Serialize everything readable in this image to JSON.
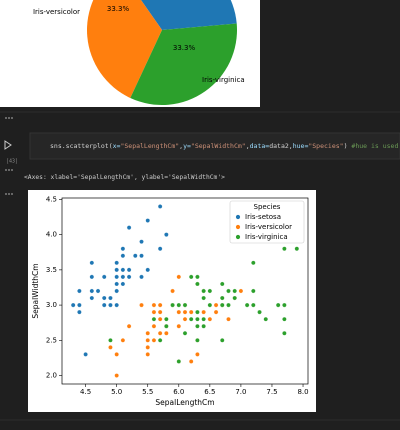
{
  "chart_data": [
    {
      "type": "pie",
      "categories": [
        null,
        "Iris-versicolor",
        "Iris-virginica"
      ],
      "values": [
        33.3,
        33.3,
        33.3
      ],
      "value_labels": [
        null,
        "33.3%",
        "33.3%"
      ],
      "colors": [
        "#1f77b4",
        "#ff7f0e",
        "#2ca02c"
      ]
    },
    {
      "type": "scatter",
      "xlabel": "SepalLengthCm",
      "ylabel": "SepalWidthCm",
      "xlim": [
        4.12,
        8.08
      ],
      "ylim": [
        1.88,
        4.52
      ],
      "xticks": [
        4.5,
        {
          "value": 5,
          "label": "5.0"
        },
        5.5,
        {
          "value": 6,
          "label": "6.0"
        },
        6.5,
        {
          "value": 7,
          "label": "7.0"
        },
        7.5,
        {
          "value": 8,
          "label": "8.0"
        }
      ],
      "yticks": [
        {
          "value": 2,
          "label": "2.0"
        },
        2.5,
        {
          "value": 3,
          "label": "3.0"
        },
        3.5,
        {
          "value": 4,
          "label": "4.0"
        },
        4.5
      ],
      "legend": {
        "title": "Species",
        "loc": "upper right"
      },
      "series": [
        {
          "name": "Iris-setosa",
          "color": "#1f77b4",
          "x": [
            5.1,
            4.9,
            4.7,
            4.6,
            5.0,
            5.4,
            4.6,
            5.0,
            4.4,
            4.9,
            5.4,
            4.8,
            4.8,
            4.3,
            5.8,
            5.7,
            5.7,
            5.1,
            5.4,
            5.1,
            4.6,
            5.1,
            5.0,
            5.2,
            5.2,
            4.8,
            5.2,
            5.5,
            5.0,
            5.5,
            4.4,
            5.1,
            5.0,
            4.5,
            4.4,
            4.6,
            5.3,
            5.0
          ],
          "values": [
            3.5,
            3.0,
            3.2,
            3.1,
            3.6,
            3.9,
            3.4,
            3.4,
            2.9,
            3.1,
            3.7,
            3.4,
            3.0,
            3.0,
            4.0,
            4.4,
            3.8,
            3.8,
            3.4,
            3.7,
            3.6,
            3.3,
            3.0,
            3.5,
            3.4,
            3.1,
            4.1,
            4.2,
            3.2,
            3.5,
            3.0,
            3.4,
            3.5,
            2.3,
            3.2,
            3.2,
            3.7,
            3.3
          ]
        },
        {
          "name": "Iris-versicolor",
          "color": "#ff7f0e",
          "x": [
            7.0,
            6.4,
            6.9,
            5.5,
            6.5,
            5.7,
            6.3,
            4.9,
            6.6,
            5.2,
            5.0,
            5.9,
            6.0,
            6.1,
            5.6,
            6.7,
            5.6,
            5.8,
            6.2,
            5.6,
            5.9,
            6.1,
            6.3,
            6.4,
            6.6,
            6.8,
            6.7,
            6.0,
            5.7,
            5.5,
            6.0,
            5.4,
            6.0,
            6.3,
            5.5,
            5.5,
            6.1,
            5.8,
            5.0,
            5.6,
            5.7,
            5.7,
            6.2,
            5.1
          ],
          "values": [
            3.2,
            3.2,
            3.1,
            2.3,
            2.8,
            2.8,
            3.3,
            2.4,
            2.9,
            2.7,
            2.0,
            3.0,
            2.2,
            2.9,
            2.9,
            3.1,
            3.0,
            2.7,
            2.2,
            2.5,
            3.2,
            2.8,
            2.5,
            2.9,
            3.0,
            2.8,
            3.0,
            2.9,
            2.6,
            2.4,
            2.7,
            3.0,
            3.4,
            2.3,
            2.5,
            2.6,
            3.0,
            2.6,
            2.3,
            2.7,
            3.0,
            2.9,
            2.9,
            2.5
          ]
        },
        {
          "name": "Iris-virginica",
          "color": "#2ca02c",
          "x": [
            6.3,
            5.8,
            7.1,
            6.3,
            6.5,
            7.6,
            4.9,
            7.3,
            6.7,
            7.2,
            6.5,
            6.4,
            6.8,
            5.7,
            5.8,
            6.4,
            7.7,
            7.7,
            6.0,
            6.9,
            5.6,
            7.7,
            6.3,
            6.7,
            7.2,
            6.2,
            6.1,
            6.4,
            7.2,
            7.4,
            7.9,
            6.3,
            6.1,
            7.7,
            6.3,
            6.4,
            6.0,
            6.9,
            6.7,
            6.8,
            6.7,
            6.3,
            6.2,
            5.9
          ],
          "values": [
            3.3,
            2.7,
            3.0,
            2.9,
            3.0,
            3.0,
            2.5,
            2.9,
            2.5,
            3.6,
            3.2,
            2.7,
            3.0,
            2.5,
            2.8,
            3.2,
            3.8,
            2.6,
            2.2,
            3.2,
            2.8,
            2.8,
            2.7,
            3.3,
            3.2,
            2.8,
            3.0,
            2.8,
            3.0,
            2.8,
            3.8,
            2.8,
            2.6,
            3.0,
            3.4,
            3.1,
            3.0,
            3.1,
            3.1,
            3.2,
            3.0,
            2.5,
            3.4,
            3.0
          ]
        }
      ]
    }
  ],
  "cell": {
    "execution_count": "[43]",
    "code": [
      {
        "text": "sns.scatterplot(",
        "color": "#d4d4d4"
      },
      {
        "text": "x=",
        "color": "#9cdcfe"
      },
      {
        "text": "\"SepalLengthCm\"",
        "color": "#ce9178"
      },
      {
        "text": ",",
        "color": "#d4d4d4"
      },
      {
        "text": "y=",
        "color": "#9cdcfe"
      },
      {
        "text": "\"SepalWidthCm\"",
        "color": "#ce9178"
      },
      {
        "text": ",",
        "color": "#d4d4d4"
      },
      {
        "text": "data=",
        "color": "#9cdcfe"
      },
      {
        "text": "data2",
        "color": "#d4d4d4"
      },
      {
        "text": ",",
        "color": "#d4d4d4"
      },
      {
        "text": "hue=",
        "color": "#9cdcfe"
      },
      {
        "text": "\"Species\"",
        "color": "#ce9178"
      },
      {
        "text": ") ",
        "color": "#d4d4d4"
      },
      {
        "text": "#hue is used to d",
        "color": "#6a9955"
      }
    ]
  },
  "output_text": "<Axes: xlabel='SepalLengthCm', ylabel='SepalWidthCm'>"
}
